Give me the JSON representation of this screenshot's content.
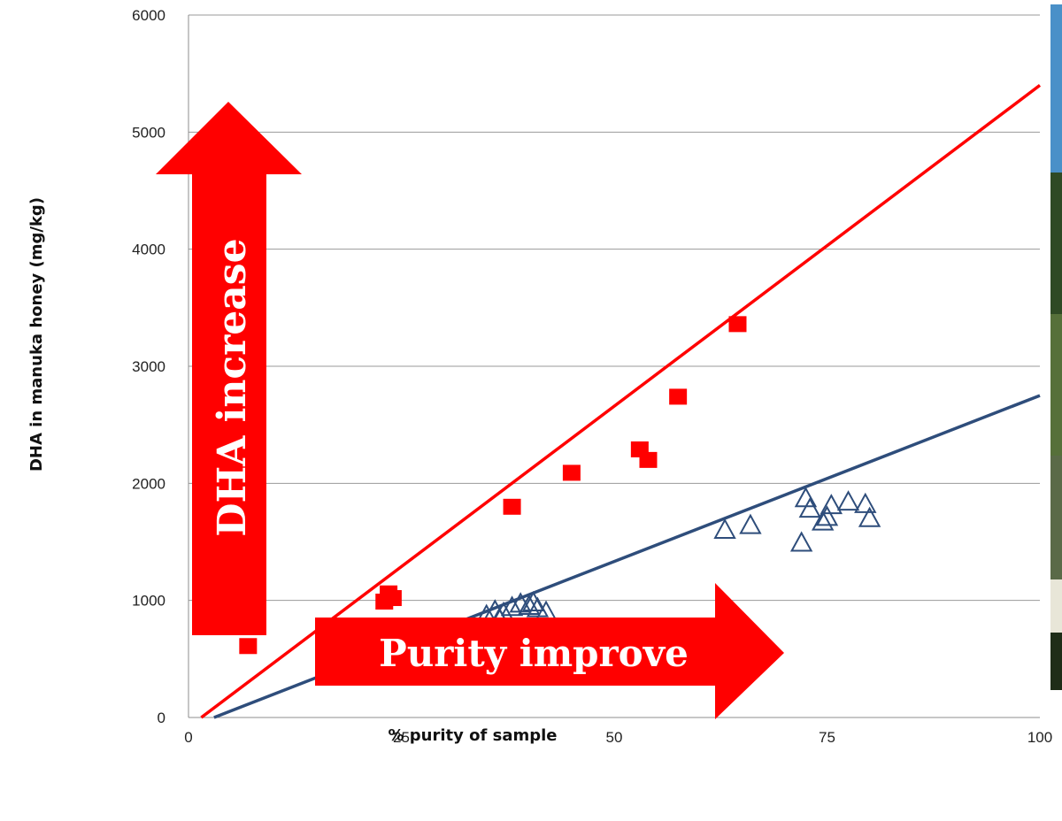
{
  "chart_data": {
    "type": "scatter",
    "xlabel": "% purity of sample",
    "ylabel": "DHA in manuka honey (mg/kg)",
    "xlim": [
      0,
      100
    ],
    "ylim": [
      0,
      6000
    ],
    "x_ticks": [
      "0",
      "25",
      "50",
      "75",
      "100"
    ],
    "y_ticks": [
      "0",
      "1000",
      "2000",
      "3000",
      "4000",
      "5000",
      "6000"
    ],
    "grid": "horizontal",
    "series": [
      {
        "marker": "filled-square",
        "color": "#ff0000",
        "points": [
          {
            "x": 7,
            "y": 610
          },
          {
            "x": 23,
            "y": 990
          },
          {
            "x": 23.5,
            "y": 1060
          },
          {
            "x": 24,
            "y": 1020
          },
          {
            "x": 38,
            "y": 1800
          },
          {
            "x": 45,
            "y": 2090
          },
          {
            "x": 53,
            "y": 2290
          },
          {
            "x": 54,
            "y": 2200
          },
          {
            "x": 57.5,
            "y": 2740
          },
          {
            "x": 64.5,
            "y": 3360
          }
        ],
        "trendline": {
          "x": [
            1.5,
            100
          ],
          "y": [
            0,
            5400
          ]
        }
      },
      {
        "marker": "open-triangle",
        "color": "#2e4d7b",
        "points": [
          {
            "x": 35,
            "y": 880
          },
          {
            "x": 36,
            "y": 920
          },
          {
            "x": 36.5,
            "y": 850
          },
          {
            "x": 37,
            "y": 900
          },
          {
            "x": 38,
            "y": 950
          },
          {
            "x": 39,
            "y": 980
          },
          {
            "x": 40,
            "y": 960
          },
          {
            "x": 40.5,
            "y": 990
          },
          {
            "x": 41,
            "y": 940
          },
          {
            "x": 42,
            "y": 910
          },
          {
            "x": 63,
            "y": 1610
          },
          {
            "x": 66,
            "y": 1650
          },
          {
            "x": 72,
            "y": 1500
          },
          {
            "x": 72.5,
            "y": 1880
          },
          {
            "x": 73,
            "y": 1790
          },
          {
            "x": 74.5,
            "y": 1680
          },
          {
            "x": 75,
            "y": 1720
          },
          {
            "x": 75.5,
            "y": 1820
          },
          {
            "x": 77.5,
            "y": 1850
          },
          {
            "x": 79.5,
            "y": 1830
          },
          {
            "x": 80,
            "y": 1710
          }
        ],
        "trendline": {
          "x": [
            3,
            100
          ],
          "y": [
            0,
            2750
          ]
        }
      }
    ],
    "annotations": [
      {
        "text": "DHA  increase",
        "style": "up-arrow",
        "color": "#ff0000"
      },
      {
        "text": "Purity improve",
        "style": "right-arrow",
        "color": "#ff0000"
      }
    ]
  }
}
